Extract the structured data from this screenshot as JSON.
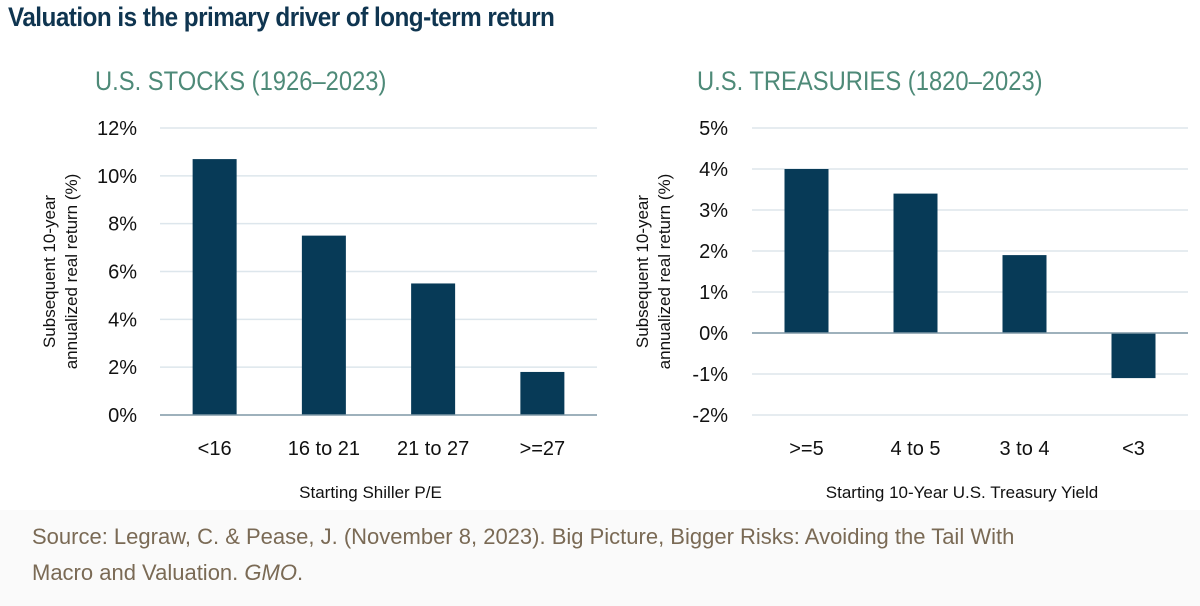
{
  "title": "Valuation is the primary driver of long-term return",
  "colors": {
    "bar": "#073a57",
    "grid": "#dde6ec",
    "axis": "#7f97a5",
    "subtitle": "#4e8a78",
    "title": "#0f3550",
    "source": "#7a6a55"
  },
  "chart_data": [
    {
      "type": "bar",
      "title": "U.S. STOCKS (1926–2023)",
      "xlabel": "Starting Shiller P/E",
      "ylabel": [
        "Subsequent 10-year",
        "annualized real return (%)"
      ],
      "categories": [
        "<16",
        "16 to 21",
        "21 to 27",
        ">=27"
      ],
      "values": [
        10.7,
        7.5,
        5.5,
        1.8
      ],
      "ylim": [
        0,
        12
      ],
      "yticks": [
        0,
        2,
        4,
        6,
        8,
        10,
        12
      ],
      "ytick_labels": [
        "0%",
        "2%",
        "4%",
        "6%",
        "8%",
        "10%",
        "12%"
      ],
      "grid": true
    },
    {
      "type": "bar",
      "title": "U.S. TREASURIES (1820–2023)",
      "xlabel": "Starting 10-Year U.S. Treasury Yield",
      "ylabel": [
        "Subsequent 10-year",
        "annualized real return (%)"
      ],
      "categories": [
        ">=5",
        "4 to 5",
        "3 to 4",
        "<3"
      ],
      "values": [
        4.0,
        3.4,
        1.9,
        -1.1
      ],
      "ylim": [
        -2,
        5
      ],
      "yticks": [
        -2,
        -1,
        0,
        1,
        2,
        3,
        4,
        5
      ],
      "ytick_labels": [
        "-2%",
        "-1%",
        "0%",
        "1%",
        "2%",
        "3%",
        "4%",
        "5%"
      ],
      "grid": true
    }
  ],
  "source": {
    "line1": "Source: Legraw, C. & Pease, J. (November 8, 2023). Big Picture, Bigger Risks: Avoiding the Tail With",
    "line2_prefix": "Macro and Valuation. ",
    "line2_italic": "GMO",
    "line2_suffix": "."
  }
}
